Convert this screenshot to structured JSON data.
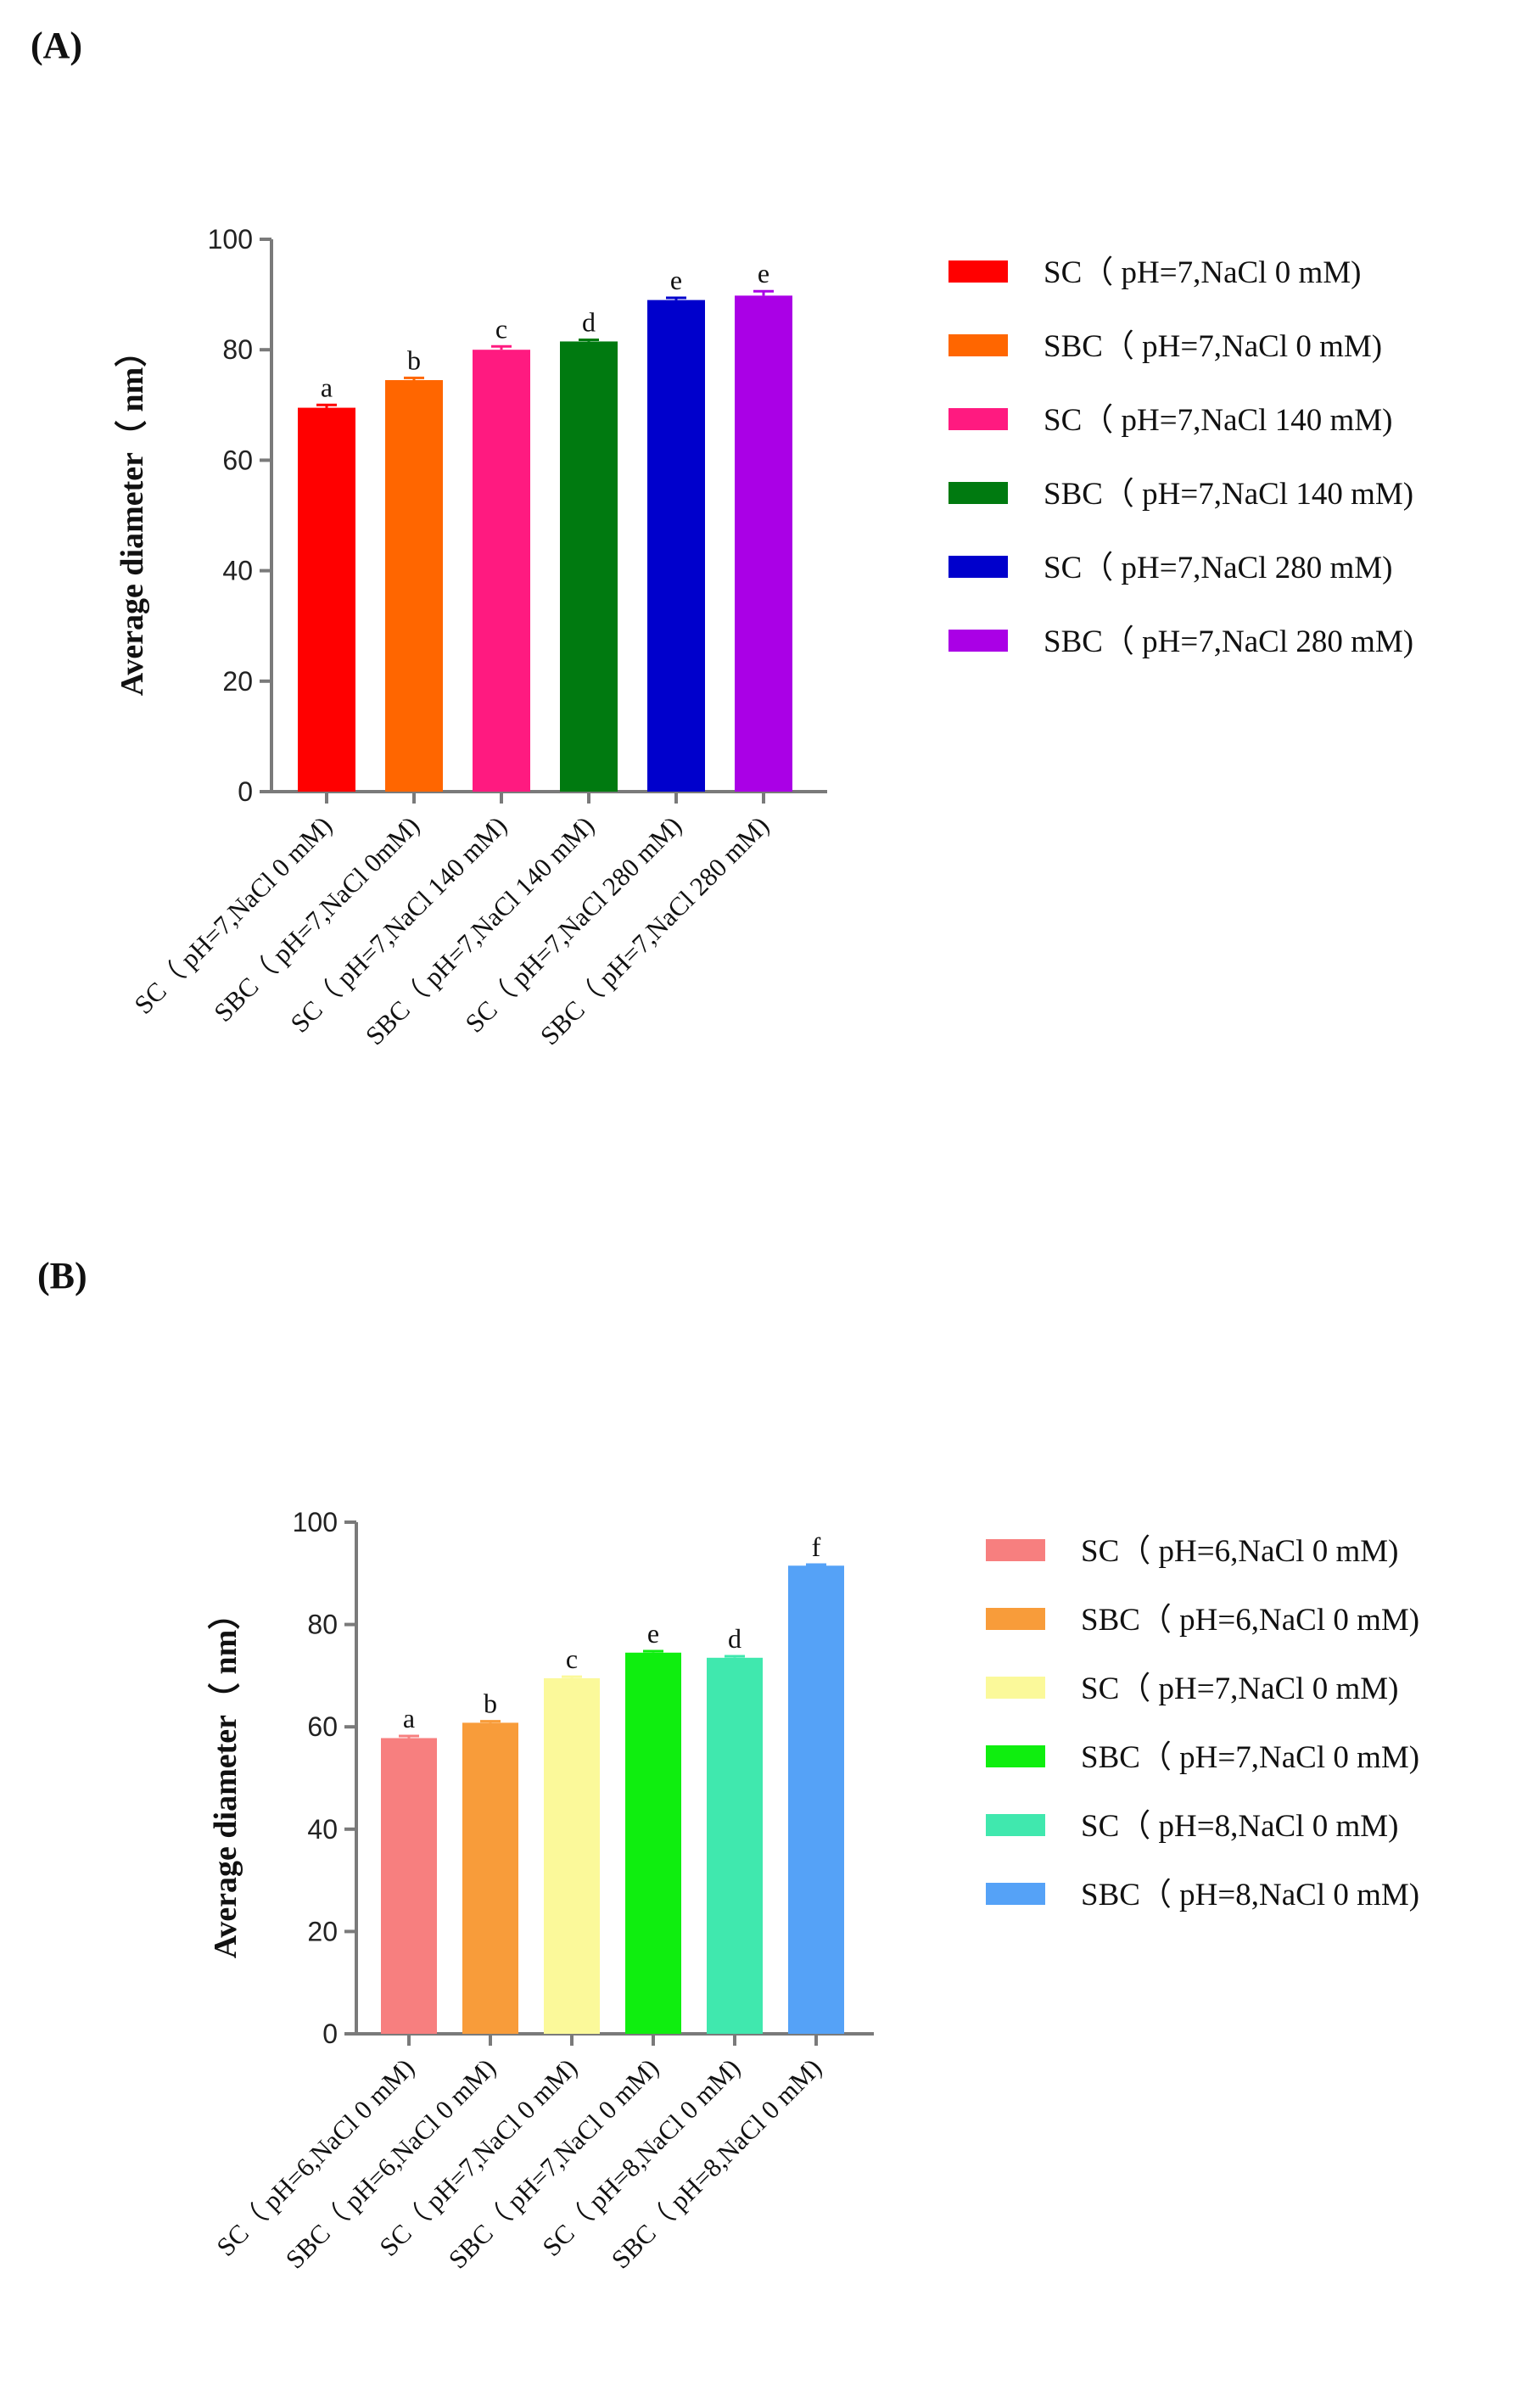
{
  "panels": {
    "a_label": "(A)",
    "b_label": "(B)"
  },
  "chart_data": [
    {
      "type": "bar",
      "panel": "(A)",
      "ylabel": "Average diameter（ nm）",
      "ylim": [
        0,
        100
      ],
      "yticks": [
        0,
        20,
        40,
        60,
        80,
        100
      ],
      "categories": [
        "SC（ pH=7,NaCl 0 mM)",
        "SBC（ pH=7,NaCl 0mM)",
        "SC（ pH=7,NaCl 140 mM)",
        "SBC（ pH=7,NaCl 140 mM)",
        "SC（ pH=7,NaCl 280 mM)",
        "SBC（ pH=7,NaCl 280 mM)"
      ],
      "values": [
        69.5,
        74.5,
        80.0,
        81.5,
        89.0,
        89.8
      ],
      "errors": [
        0.5,
        0.4,
        0.6,
        0.3,
        0.4,
        0.8
      ],
      "significance": [
        "a",
        "b",
        "c",
        "d",
        "e",
        "e"
      ],
      "colors": [
        "#ff0000",
        "#ff6600",
        "#ff1a80",
        "#007a10",
        "#0000cc",
        "#aa00e6"
      ],
      "legend": [
        "SC（ pH=7,NaCl 0 mM)",
        "SBC（ pH=7,NaCl 0 mM)",
        "SC（ pH=7,NaCl 140 mM)",
        "SBC（ pH=7,NaCl 140 mM)",
        "SC（ pH=7,NaCl 280 mM)",
        "SBC（ pH=7,NaCl 280 mM)"
      ],
      "legend_position": "right",
      "grid": false
    },
    {
      "type": "bar",
      "panel": "(B)",
      "ylabel": "Average diameter（ nm）",
      "ylim": [
        0,
        100
      ],
      "yticks": [
        0,
        20,
        40,
        60,
        80,
        100
      ],
      "categories": [
        "SC（ pH=6,NaCl 0 mM)",
        "SBC（ pH=6,NaCl 0 mM)",
        "SC（ pH=7,NaCl 0 mM)",
        "SBC（ pH=7,NaCl 0 mM)",
        "SC（ pH=8,NaCl 0 mM)",
        "SBC（ pH=8,NaCl 0 mM)"
      ],
      "values": [
        57.8,
        60.8,
        69.5,
        74.5,
        73.5,
        91.5
      ],
      "errors": [
        0.4,
        0.3,
        0.3,
        0.3,
        0.3,
        0.2
      ],
      "significance": [
        "a",
        "b",
        "c",
        "e",
        "d",
        "f"
      ],
      "colors": [
        "#f77f7f",
        "#f89c3a",
        "#fbf99a",
        "#0fee0f",
        "#40e8ae",
        "#55a2f7"
      ],
      "legend": [
        "SC（ pH=6,NaCl 0 mM)",
        "SBC（ pH=6,NaCl 0 mM)",
        "SC（ pH=7,NaCl 0 mM)",
        "SBC（ pH=7,NaCl 0 mM)",
        "SC（ pH=8,NaCl 0 mM)",
        "SBC（ pH=8,NaCl 0 mM)"
      ],
      "legend_position": "right",
      "grid": false
    }
  ]
}
